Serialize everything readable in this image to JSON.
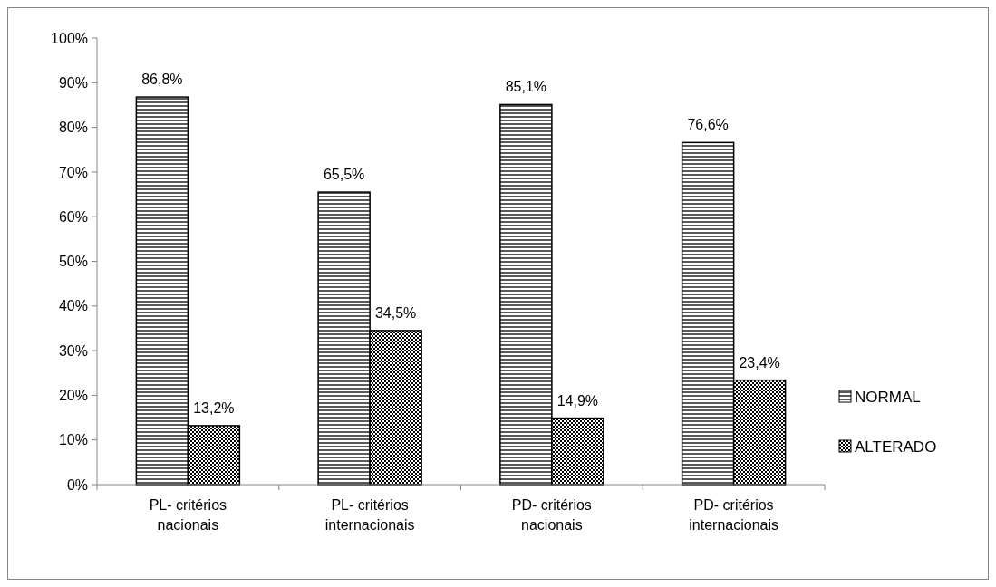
{
  "chart_data": {
    "type": "bar",
    "categories": [
      "PL- critérios nacionais",
      "PL- critérios internacionais",
      "PD-  critérios nacionais",
      "PD- critérios internacionais"
    ],
    "series": [
      {
        "name": "NORMAL",
        "color": "#000000",
        "values": [
          86.8,
          65.5,
          85.1,
          76.6
        ],
        "value_labels": [
          "86,8%",
          "65,5%",
          "85,1%",
          "76,6%"
        ]
      },
      {
        "name": "ALTERADO",
        "color": "#000000",
        "values": [
          13.2,
          34.5,
          14.9,
          23.4
        ],
        "value_labels": [
          "13,2%",
          "34,5%",
          "14,9%",
          "23,4%"
        ]
      }
    ],
    "ylim": [
      0,
      100
    ],
    "yticks": [
      {
        "value": 0,
        "label": "0%"
      },
      {
        "value": 10,
        "label": "10%"
      },
      {
        "value": 20,
        "label": "20%"
      },
      {
        "value": 30,
        "label": "30%"
      },
      {
        "value": 40,
        "label": "40%"
      },
      {
        "value": 50,
        "label": "50%"
      },
      {
        "value": 60,
        "label": "60%"
      },
      {
        "value": 70,
        "label": "70%"
      },
      {
        "value": 80,
        "label": "80%"
      },
      {
        "value": 90,
        "label": "90%"
      },
      {
        "value": 100,
        "label": "100%"
      }
    ],
    "grid": false,
    "legend": "right"
  }
}
